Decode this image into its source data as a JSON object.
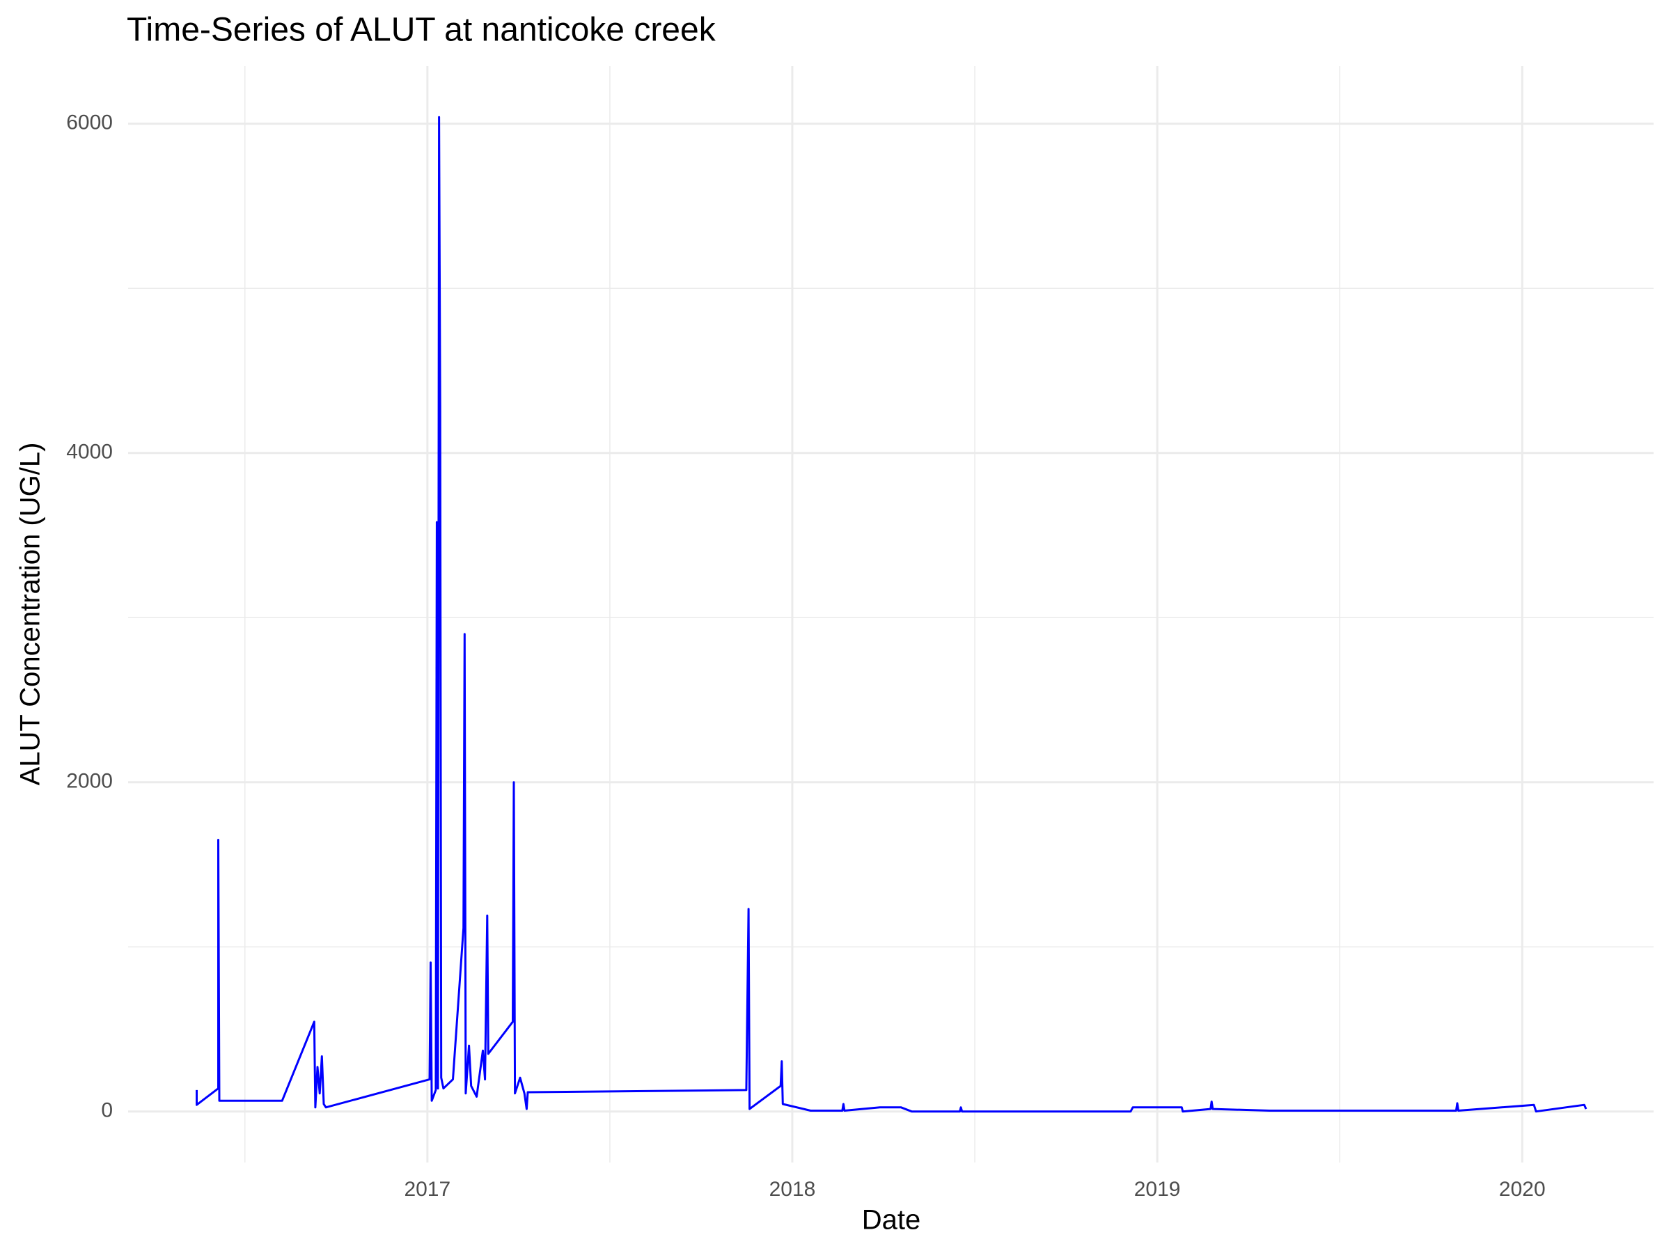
{
  "chart_data": {
    "type": "line",
    "title": "Time-Series of ALUT at nanticoke creek",
    "x_label": "Date",
    "y_label": "ALUT Concentration (UG/L)",
    "color": "#0000ff",
    "grid": true,
    "xlim": [
      2016.18,
      2020.36
    ],
    "ylim": [
      -310,
      6350
    ],
    "xticks": [
      2017,
      2018,
      2019,
      2020
    ],
    "yticks": [
      0,
      2000,
      4000,
      6000
    ],
    "xminor": [
      2016.5,
      2017.5,
      2018.5,
      2019.5
    ],
    "yminor": [
      1000,
      3000,
      5000
    ],
    "x": [
      2016.368,
      2016.368,
      2016.427,
      2016.427,
      2016.43,
      2016.602,
      2016.69,
      2016.693,
      2016.699,
      2016.705,
      2016.711,
      2016.716,
      2016.722,
      2017.006,
      2017.009,
      2017.012,
      2017.023,
      2017.026,
      2017.029,
      2017.032,
      2017.035,
      2017.038,
      2017.044,
      2017.07,
      2017.099,
      2017.102,
      2017.105,
      2017.114,
      2017.12,
      2017.135,
      2017.152,
      2017.158,
      2017.164,
      2017.167,
      2017.234,
      2017.237,
      2017.24,
      2017.254,
      2017.266,
      2017.272,
      2017.275,
      2017.874,
      2017.88,
      2017.883,
      2017.968,
      2017.971,
      2017.974,
      2018.05,
      2018.137,
      2018.14,
      2018.143,
      2018.24,
      2018.298,
      2018.327,
      2018.459,
      2018.462,
      2018.465,
      2018.927,
      2018.933,
      2019.067,
      2019.07,
      2019.146,
      2019.149,
      2019.152,
      2019.307,
      2019.482,
      2019.819,
      2019.822,
      2019.825,
      2020.032,
      2020.038,
      2020.17,
      2020.175
    ],
    "values": [
      130,
      40,
      140,
      1650,
      65,
      65,
      545,
      25,
      270,
      110,
      335,
      45,
      25,
      195,
      905,
      65,
      130,
      3580,
      140,
      6040,
      4290,
      205,
      140,
      195,
      1115,
      2900,
      110,
      400,
      155,
      90,
      370,
      195,
      1190,
      350,
      545,
      2000,
      110,
      205,
      110,
      15,
      117,
      130,
      1230,
      15,
      155,
      305,
      45,
      5,
      5,
      45,
      5,
      25,
      25,
      0,
      0,
      25,
      0,
      0,
      25,
      25,
      0,
      15,
      60,
      15,
      5,
      5,
      5,
      50,
      5,
      40,
      0,
      40,
      15
    ]
  }
}
